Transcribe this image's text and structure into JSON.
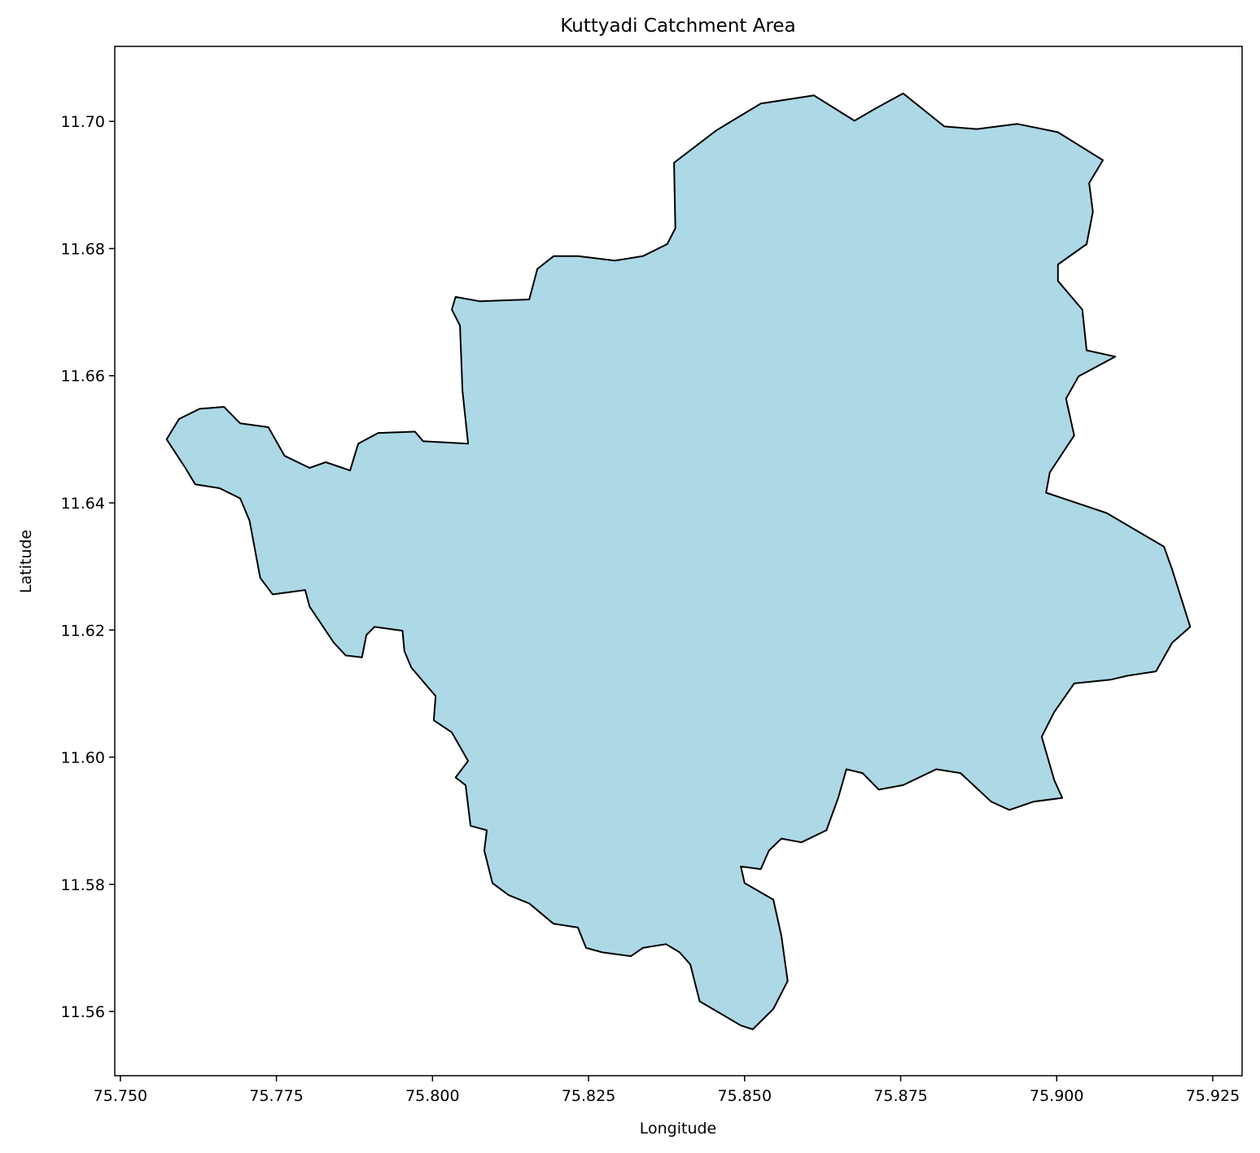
{
  "chart_data": {
    "type": "polygon",
    "title": "Kuttyadi Catchment Area",
    "xlabel": "Longitude",
    "ylabel": "Latitude",
    "color": "#add8e6",
    "edgecolor": "#000000",
    "xlim": [
      75.7491,
      75.9297
    ],
    "ylim": [
      11.5499,
      11.7118
    ],
    "xticks": [
      {
        "value": 75.75,
        "label": "75.750"
      },
      75.775,
      {
        "value": 75.8,
        "label": "75.800"
      },
      75.825,
      {
        "value": 75.85,
        "label": "75.850"
      },
      75.875,
      {
        "value": 75.9,
        "label": "75.900"
      },
      75.925
    ],
    "yticks": [
      11.56,
      11.58,
      {
        "value": 11.6,
        "label": "11.60"
      },
      11.62,
      11.64,
      11.66,
      11.68,
      {
        "value": 11.7,
        "label": "11.70"
      }
    ],
    "x": [
      75.7574,
      75.7594,
      75.7627,
      75.7666,
      75.7692,
      75.7737,
      75.7763,
      75.7803,
      75.7829,
      75.7868,
      75.7881,
      75.7913,
      75.7972,
      75.7985,
      75.8057,
      75.8048,
      75.8044,
      75.8031,
      75.8037,
      75.8076,
      75.8155,
      75.8168,
      75.8194,
      75.8233,
      75.8292,
      75.8337,
      75.8376,
      75.8389,
      75.8387,
      75.8455,
      75.8526,
      75.8611,
      75.8676,
      75.8709,
      75.8754,
      75.882,
      75.8872,
      75.8937,
      75.9002,
      75.9074,
      75.9052,
      75.9058,
      75.9048,
      75.9002,
      75.9002,
      75.9041,
      75.9048,
      75.9094,
      75.9035,
      75.9015,
      75.9028,
      75.8989,
      75.8983,
      75.9041,
      75.908,
      75.9172,
      75.9185,
      75.9214,
      75.9185,
      75.9159,
      75.9113,
      75.9087,
      75.9028,
      75.8996,
      75.8976,
      75.8996,
      75.9009,
      75.8963,
      75.8924,
      75.8895,
      75.8846,
      75.8807,
      75.8754,
      75.8715,
      75.8689,
      75.8663,
      75.865,
      75.8631,
      75.8591,
      75.8559,
      75.8539,
      75.8526,
      75.8494,
      75.85,
      75.8546,
      75.8559,
      75.8569,
      75.8546,
      75.8513,
      75.8494,
      75.8461,
      75.8428,
      75.8413,
      75.8396,
      75.8374,
      75.8337,
      75.8318,
      75.8272,
      75.8246,
      75.8233,
      75.8194,
      75.8155,
      75.8122,
      75.8096,
      75.8083,
      75.8087,
      75.8061,
      75.8053,
      75.8037,
      75.8057,
      75.8031,
      75.8002,
      75.8005,
      75.7966,
      75.7955,
      75.7952,
      75.7907,
      75.7894,
      75.7887,
      75.7861,
      75.7842,
      75.7803,
      75.7796,
      75.7744,
      75.7724,
      75.7707,
      75.7692,
      75.7659,
      75.762,
      75.7604
    ],
    "y": [
      11.65,
      11.6532,
      11.6548,
      11.6551,
      11.6525,
      11.6519,
      11.6474,
      11.6455,
      11.6464,
      11.6451,
      11.6493,
      11.651,
      11.6512,
      11.6497,
      11.6493,
      11.6576,
      11.6679,
      11.6704,
      11.6724,
      11.6717,
      11.672,
      11.6768,
      11.6788,
      11.6788,
      11.6781,
      11.6788,
      11.6807,
      11.6832,
      11.6935,
      11.6986,
      11.7028,
      11.7041,
      11.7001,
      11.702,
      11.7044,
      11.6992,
      11.6988,
      11.6996,
      11.6983,
      11.6939,
      11.6903,
      11.6858,
      11.6807,
      11.6775,
      11.6749,
      11.6704,
      11.664,
      11.663,
      11.6599,
      11.6564,
      11.6506,
      11.6448,
      11.6416,
      11.6397,
      11.6384,
      11.6331,
      11.6295,
      11.6205,
      11.618,
      11.6135,
      11.6128,
      11.6122,
      11.6116,
      11.6071,
      11.6032,
      11.5964,
      11.5936,
      11.593,
      11.5917,
      11.593,
      11.5975,
      11.5981,
      11.5956,
      11.5949,
      11.5975,
      11.5981,
      11.5936,
      11.5885,
      11.5866,
      11.5872,
      11.5853,
      11.5824,
      11.5828,
      11.5802,
      11.5776,
      11.5719,
      11.5648,
      11.5604,
      11.5572,
      11.5578,
      11.5597,
      11.5616,
      11.5674,
      11.5693,
      11.5706,
      11.57,
      11.5687,
      11.5693,
      11.57,
      11.5732,
      11.5738,
      11.577,
      11.5783,
      11.5802,
      11.5853,
      11.5885,
      11.5892,
      11.5956,
      11.5968,
      11.5994,
      11.6039,
      11.6058,
      11.6096,
      11.6141,
      11.6167,
      11.6199,
      11.6205,
      11.6192,
      11.6157,
      11.616,
      11.618,
      11.6237,
      11.6263,
      11.6256,
      11.6282,
      11.6372,
      11.6407,
      11.6423,
      11.6429,
      11.6455
    ]
  }
}
